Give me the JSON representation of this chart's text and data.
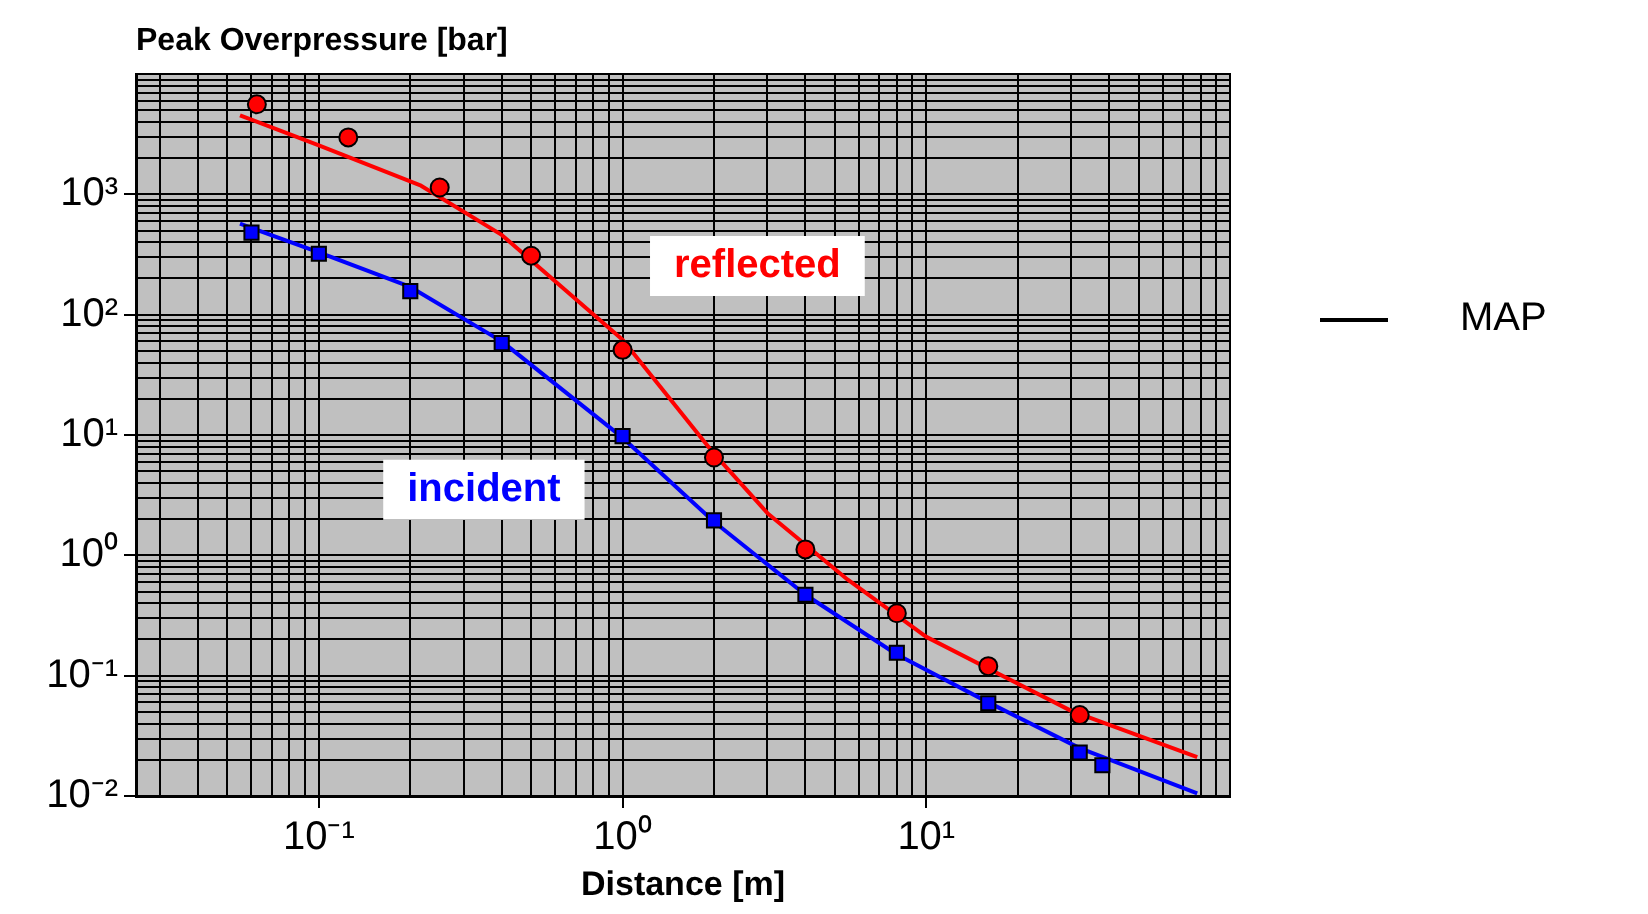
{
  "chart_data": {
    "type": "scatter",
    "ylabel": "Peak Overpressure [bar]",
    "xlabel": "Distance [m]",
    "log": "xy",
    "grid": true,
    "xlim": [
      0.025,
      100
    ],
    "ylim": [
      0.01,
      10000
    ],
    "xticks": [
      {
        "value": 0.03,
        "label": null
      },
      {
        "value": 0.04,
        "label": null
      },
      {
        "value": 0.05,
        "label": null
      },
      {
        "value": 0.06,
        "label": null
      },
      {
        "value": 0.07,
        "label": null
      },
      {
        "value": 0.08,
        "label": null
      },
      {
        "value": 0.09,
        "label": null
      },
      {
        "value": 0.1,
        "label": "10⁻¹"
      },
      {
        "value": 0.2,
        "label": null
      },
      {
        "value": 0.3,
        "label": null
      },
      {
        "value": 0.4,
        "label": null
      },
      {
        "value": 0.5,
        "label": null
      },
      {
        "value": 0.6,
        "label": null
      },
      {
        "value": 0.7,
        "label": null
      },
      {
        "value": 0.8,
        "label": null
      },
      {
        "value": 0.9,
        "label": null
      },
      {
        "value": 1,
        "label": "10⁰"
      },
      {
        "value": 2,
        "label": null
      },
      {
        "value": 3,
        "label": null
      },
      {
        "value": 4,
        "label": null
      },
      {
        "value": 5,
        "label": null
      },
      {
        "value": 6,
        "label": null
      },
      {
        "value": 7,
        "label": null
      },
      {
        "value": 8,
        "label": null
      },
      {
        "value": 9,
        "label": null
      },
      {
        "value": 10,
        "label": "10¹"
      },
      {
        "value": 20,
        "label": null
      },
      {
        "value": 30,
        "label": null
      },
      {
        "value": 40,
        "label": null
      },
      {
        "value": 50,
        "label": null
      },
      {
        "value": 60,
        "label": null
      },
      {
        "value": 70,
        "label": null
      },
      {
        "value": 80,
        "label": null
      },
      {
        "value": 90,
        "label": null
      }
    ],
    "yticks": [
      {
        "value": 0.01,
        "label": "10⁻²"
      },
      {
        "value": 0.02,
        "label": null
      },
      {
        "value": 0.03,
        "label": null
      },
      {
        "value": 0.04,
        "label": null
      },
      {
        "value": 0.05,
        "label": null
      },
      {
        "value": 0.06,
        "label": null
      },
      {
        "value": 0.07,
        "label": null
      },
      {
        "value": 0.08,
        "label": null
      },
      {
        "value": 0.09,
        "label": null
      },
      {
        "value": 0.1,
        "label": "10⁻¹"
      },
      {
        "value": 0.2,
        "label": null
      },
      {
        "value": 0.3,
        "label": null
      },
      {
        "value": 0.4,
        "label": null
      },
      {
        "value": 0.5,
        "label": null
      },
      {
        "value": 0.6,
        "label": null
      },
      {
        "value": 0.7,
        "label": null
      },
      {
        "value": 0.8,
        "label": null
      },
      {
        "value": 0.9,
        "label": null
      },
      {
        "value": 1,
        "label": "10⁰"
      },
      {
        "value": 2,
        "label": null
      },
      {
        "value": 3,
        "label": null
      },
      {
        "value": 4,
        "label": null
      },
      {
        "value": 5,
        "label": null
      },
      {
        "value": 6,
        "label": null
      },
      {
        "value": 7,
        "label": null
      },
      {
        "value": 8,
        "label": null
      },
      {
        "value": 9,
        "label": null
      },
      {
        "value": 10,
        "label": "10¹"
      },
      {
        "value": 20,
        "label": null
      },
      {
        "value": 30,
        "label": null
      },
      {
        "value": 40,
        "label": null
      },
      {
        "value": 50,
        "label": null
      },
      {
        "value": 60,
        "label": null
      },
      {
        "value": 70,
        "label": null
      },
      {
        "value": 80,
        "label": null
      },
      {
        "value": 90,
        "label": null
      },
      {
        "value": 100,
        "label": "10²"
      },
      {
        "value": 200,
        "label": null
      },
      {
        "value": 300,
        "label": null
      },
      {
        "value": 400,
        "label": null
      },
      {
        "value": 500,
        "label": null
      },
      {
        "value": 600,
        "label": null
      },
      {
        "value": 700,
        "label": null
      },
      {
        "value": 800,
        "label": null
      },
      {
        "value": 900,
        "label": null
      },
      {
        "value": 1000,
        "label": "10³"
      },
      {
        "value": 2000,
        "label": null
      },
      {
        "value": 3000,
        "label": null
      },
      {
        "value": 4000,
        "label": null
      },
      {
        "value": 5000,
        "label": null
      },
      {
        "value": 6000,
        "label": null
      },
      {
        "value": 7000,
        "label": null
      },
      {
        "value": 8000,
        "label": null
      },
      {
        "value": 9000,
        "label": null
      },
      {
        "value": 10000,
        "label": null
      }
    ],
    "series": [
      {
        "marker": "circle",
        "color": "#ff0000",
        "x": [
          0.0625,
          0.125,
          0.25,
          0.5,
          1,
          2,
          4,
          8,
          16,
          32
        ],
        "values": [
          5600,
          2970,
          1140,
          309,
          51,
          6.5,
          1.12,
          0.33,
          0.12,
          0.047
        ]
      },
      {
        "marker": "square",
        "color": "#0000ff",
        "x": [
          0.06,
          0.1,
          0.2,
          0.4,
          1,
          2,
          4,
          8,
          16,
          32,
          38
        ],
        "values": [
          480,
          321,
          157,
          58,
          9.8,
          1.95,
          0.47,
          0.155,
          0.059,
          0.023,
          0.018
        ]
      },
      {
        "type": "line",
        "name": "reflected",
        "marker": "none",
        "line_style": "solid",
        "color": "#ff0000",
        "x": [
          0.055,
          0.1,
          0.217,
          0.4,
          1,
          2,
          3,
          5.5,
          10,
          30,
          78
        ],
        "values": [
          4540,
          2550,
          1180,
          460,
          62,
          7,
          2.24,
          0.63,
          0.21,
          0.051,
          0.021
        ]
      },
      {
        "type": "line",
        "name": "incident",
        "marker": "none",
        "line_style": "solid",
        "color": "#0000ff",
        "x": [
          0.055,
          0.1,
          0.2,
          0.4,
          1,
          2,
          4,
          8,
          16,
          32,
          78
        ],
        "values": [
          570,
          330,
          170,
          60,
          9.5,
          1.9,
          0.47,
          0.15,
          0.06,
          0.025,
          0.0105
        ]
      }
    ],
    "annotations": [
      "MAP"
    ]
  }
}
